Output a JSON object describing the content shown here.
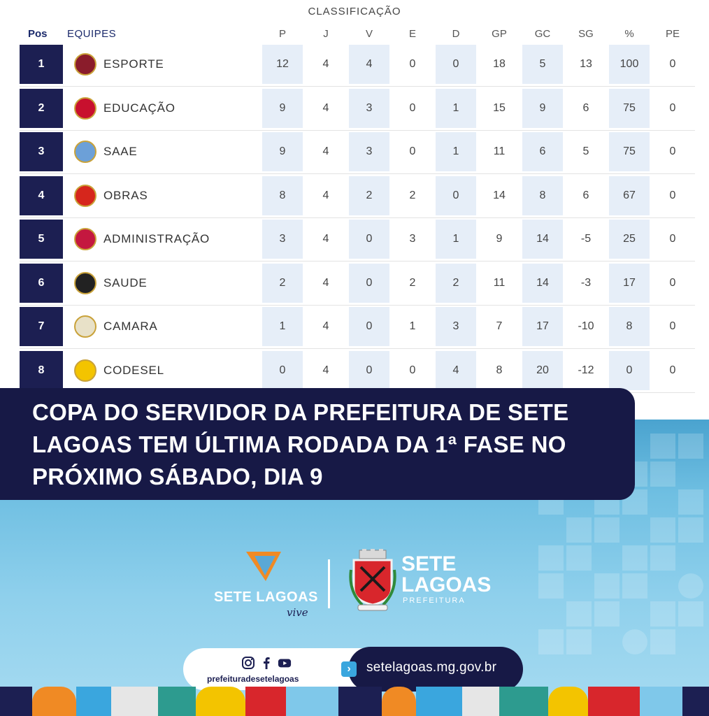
{
  "table": {
    "title": "CLASSIFICAÇÃO",
    "headers": [
      "Pos",
      "EQUIPES",
      "P",
      "J",
      "V",
      "E",
      "D",
      "GP",
      "GC",
      "SG",
      "%",
      "PE"
    ],
    "rows": [
      {
        "pos": "1",
        "team": "ESPORTE",
        "P": "12",
        "J": "4",
        "V": "4",
        "E": "0",
        "D": "0",
        "GP": "18",
        "GC": "5",
        "SG": "13",
        "pct": "100",
        "PE": "0",
        "crest_color": "#8a1c2b"
      },
      {
        "pos": "2",
        "team": "EDUCAÇÃO",
        "P": "9",
        "J": "4",
        "V": "3",
        "E": "0",
        "D": "1",
        "GP": "15",
        "GC": "9",
        "SG": "6",
        "pct": "75",
        "PE": "0",
        "crest_color": "#c8102e"
      },
      {
        "pos": "3",
        "team": "SAAE",
        "P": "9",
        "J": "4",
        "V": "3",
        "E": "0",
        "D": "1",
        "GP": "11",
        "GC": "6",
        "SG": "5",
        "pct": "75",
        "PE": "0",
        "crest_color": "#6ca0d8"
      },
      {
        "pos": "4",
        "team": "OBRAS",
        "P": "8",
        "J": "4",
        "V": "2",
        "E": "2",
        "D": "0",
        "GP": "14",
        "GC": "8",
        "SG": "6",
        "pct": "67",
        "PE": "0",
        "crest_color": "#d6261c"
      },
      {
        "pos": "5",
        "team": "ADMINISTRAÇÃO",
        "P": "3",
        "J": "4",
        "V": "0",
        "E": "3",
        "D": "1",
        "GP": "9",
        "GC": "14",
        "SG": "-5",
        "pct": "25",
        "PE": "0",
        "crest_color": "#c4183f"
      },
      {
        "pos": "6",
        "team": "SAUDE",
        "P": "2",
        "J": "4",
        "V": "0",
        "E": "2",
        "D": "2",
        "GP": "11",
        "GC": "14",
        "SG": "-3",
        "pct": "17",
        "PE": "0",
        "crest_color": "#222222"
      },
      {
        "pos": "7",
        "team": "CAMARA",
        "P": "1",
        "J": "4",
        "V": "0",
        "E": "1",
        "D": "3",
        "GP": "7",
        "GC": "17",
        "SG": "-10",
        "pct": "8",
        "PE": "0",
        "crest_color": "#e8e1c8"
      },
      {
        "pos": "8",
        "team": "CODESEL",
        "P": "0",
        "J": "4",
        "V": "0",
        "E": "0",
        "D": "4",
        "GP": "8",
        "GC": "20",
        "SG": "-12",
        "pct": "0",
        "PE": "0",
        "crest_color": "#f3c400"
      }
    ]
  },
  "headline": "COPA DO SERVIDOR DA PREFEITURA DE SETE LAGOAS TEM ÚLTIMA RODADA DA 1ª FASE NO PRÓXIMO SÁBADO, DIA 9",
  "logos": {
    "vive_main": "SETE LAGOAS",
    "vive_sub": "vive",
    "city_line1": "SETE",
    "city_line2": "LAGOAS",
    "city_sub": "PREFEITURA"
  },
  "footer": {
    "social_handle": "prefeituradesetelagoas",
    "social_icons": [
      "instagram-icon",
      "facebook-icon",
      "youtube-icon"
    ],
    "site": "setelagoas.mg.gov.br"
  },
  "colors": {
    "navy": "#171946",
    "position_cell": "#1c1f52",
    "shade": "#e6eef8",
    "sky": "#8fd0ec",
    "orange": "#f08a24"
  }
}
